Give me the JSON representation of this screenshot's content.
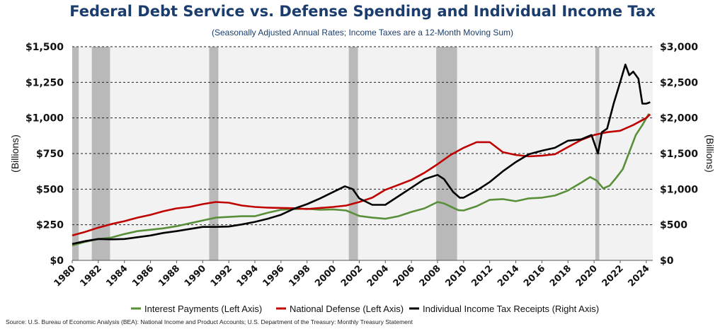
{
  "chart_data": {
    "type": "line",
    "title": "Federal Debt Service vs. Defense Spending and Individual Income Tax",
    "subtitle": "(Seasonally Adjusted Annual Rates; Income Taxes are a 12-Month Moving Sum)",
    "ylabel_left": "(Billions)",
    "ylabel_right": "(Billions)",
    "source": "Source: U.S. Bureau of Economic Analysis (BEA): National Income and Product Accounts; U.S. Department of the Treasury: Monthly Treasury Statement",
    "xlim": [
      1980,
      2024.5
    ],
    "ylim_left": [
      0,
      1500
    ],
    "ylim_right": [
      0,
      3000
    ],
    "x_ticks": [
      "1980",
      "1982",
      "1984",
      "1986",
      "1988",
      "1990",
      "1992",
      "1994",
      "1996",
      "1998",
      "2000",
      "2002",
      "2004",
      "2006",
      "2008",
      "2010",
      "2012",
      "2014",
      "2016",
      "2018",
      "2020",
      "2022",
      "2024"
    ],
    "y_ticks_left": [
      "$0",
      "$250",
      "$500",
      "$750",
      "$1,000",
      "$1,250",
      "$1,500"
    ],
    "y_ticks_right": [
      "$0",
      "$500",
      "$1,000",
      "$1,500",
      "$2,000",
      "$2,500",
      "$3,000"
    ],
    "grid": "horizontal dashed",
    "legend_position": "bottom",
    "recessions": [
      [
        1980.0,
        1980.5
      ],
      [
        1981.5,
        1982.9
      ],
      [
        1990.5,
        1991.2
      ],
      [
        2001.2,
        2001.9
      ],
      [
        2007.9,
        2009.5
      ],
      [
        2020.1,
        2020.4
      ]
    ],
    "series": [
      {
        "name": "Interest Payments (Left Axis)",
        "axis": "left",
        "color": "#5a8f3a",
        "points": [
          [
            1980,
            105
          ],
          [
            1981,
            130
          ],
          [
            1982,
            150
          ],
          [
            1983,
            160
          ],
          [
            1984,
            185
          ],
          [
            1985,
            205
          ],
          [
            1986,
            215
          ],
          [
            1987,
            225
          ],
          [
            1988,
            240
          ],
          [
            1989,
            260
          ],
          [
            1990,
            280
          ],
          [
            1991,
            300
          ],
          [
            1992,
            305
          ],
          [
            1993,
            310
          ],
          [
            1994,
            310
          ],
          [
            1995,
            335
          ],
          [
            1996,
            355
          ],
          [
            1997,
            360
          ],
          [
            1998,
            362
          ],
          [
            1999,
            355
          ],
          [
            2000,
            358
          ],
          [
            2001,
            350
          ],
          [
            2002,
            312
          ],
          [
            2003,
            300
          ],
          [
            2004,
            292
          ],
          [
            2005,
            310
          ],
          [
            2006,
            340
          ],
          [
            2007,
            365
          ],
          [
            2008,
            410
          ],
          [
            2008.5,
            400
          ],
          [
            2009,
            378
          ],
          [
            2009.6,
            352
          ],
          [
            2010,
            350
          ],
          [
            2011,
            380
          ],
          [
            2012,
            425
          ],
          [
            2013,
            430
          ],
          [
            2014,
            415
          ],
          [
            2015,
            435
          ],
          [
            2016,
            440
          ],
          [
            2017,
            455
          ],
          [
            2018,
            490
          ],
          [
            2019,
            545
          ],
          [
            2019.7,
            585
          ],
          [
            2020.2,
            560
          ],
          [
            2020.7,
            505
          ],
          [
            2021.2,
            525
          ],
          [
            2021.7,
            580
          ],
          [
            2022.2,
            640
          ],
          [
            2022.7,
            760
          ],
          [
            2023.2,
            880
          ],
          [
            2023.7,
            950
          ],
          [
            2024.2,
            1030
          ]
        ]
      },
      {
        "name": "National Defense (Left Axis)",
        "axis": "left",
        "color": "#c00000",
        "points": [
          [
            1980,
            175
          ],
          [
            1981,
            200
          ],
          [
            1982,
            230
          ],
          [
            1983,
            255
          ],
          [
            1984,
            275
          ],
          [
            1985,
            300
          ],
          [
            1986,
            320
          ],
          [
            1987,
            345
          ],
          [
            1988,
            365
          ],
          [
            1989,
            375
          ],
          [
            1990,
            395
          ],
          [
            1991,
            410
          ],
          [
            1992,
            405
          ],
          [
            1993,
            385
          ],
          [
            1994,
            375
          ],
          [
            1995,
            370
          ],
          [
            1996,
            368
          ],
          [
            1997,
            366
          ],
          [
            1998,
            360
          ],
          [
            1999,
            368
          ],
          [
            2000,
            375
          ],
          [
            2001,
            385
          ],
          [
            2002,
            410
          ],
          [
            2003,
            440
          ],
          [
            2004,
            495
          ],
          [
            2005,
            530
          ],
          [
            2006,
            565
          ],
          [
            2007,
            615
          ],
          [
            2008,
            675
          ],
          [
            2009,
            740
          ],
          [
            2010,
            790
          ],
          [
            2011,
            830
          ],
          [
            2012,
            830
          ],
          [
            2013,
            760
          ],
          [
            2014,
            740
          ],
          [
            2015,
            730
          ],
          [
            2016,
            735
          ],
          [
            2017,
            745
          ],
          [
            2018,
            795
          ],
          [
            2019,
            845
          ],
          [
            2020,
            880
          ],
          [
            2021,
            900
          ],
          [
            2022,
            910
          ],
          [
            2023,
            950
          ],
          [
            2024,
            1000
          ],
          [
            2024.3,
            1025
          ]
        ]
      },
      {
        "name": "Individual Income Tax Receipts (Right Axis)",
        "axis": "right",
        "color": "#000000",
        "points": [
          [
            1980,
            230
          ],
          [
            1981,
            270
          ],
          [
            1982,
            300
          ],
          [
            1983,
            295
          ],
          [
            1984,
            300
          ],
          [
            1985,
            325
          ],
          [
            1986,
            350
          ],
          [
            1987,
            385
          ],
          [
            1988,
            410
          ],
          [
            1989,
            440
          ],
          [
            1990,
            470
          ],
          [
            1991,
            470
          ],
          [
            1992,
            475
          ],
          [
            1993,
            505
          ],
          [
            1994,
            540
          ],
          [
            1995,
            585
          ],
          [
            1996,
            640
          ],
          [
            1997,
            725
          ],
          [
            1998,
            790
          ],
          [
            1999,
            870
          ],
          [
            2000,
            960
          ],
          [
            2000.9,
            1040
          ],
          [
            2001.5,
            1000
          ],
          [
            2002,
            870
          ],
          [
            2003,
            780
          ],
          [
            2004,
            780
          ],
          [
            2005,
            900
          ],
          [
            2006,
            1020
          ],
          [
            2007,
            1140
          ],
          [
            2008,
            1200
          ],
          [
            2008.5,
            1140
          ],
          [
            2009.2,
            960
          ],
          [
            2009.7,
            880
          ],
          [
            2010,
            880
          ],
          [
            2011,
            980
          ],
          [
            2012,
            1100
          ],
          [
            2013,
            1250
          ],
          [
            2014,
            1380
          ],
          [
            2015,
            1490
          ],
          [
            2016,
            1540
          ],
          [
            2017,
            1580
          ],
          [
            2018,
            1680
          ],
          [
            2019,
            1700
          ],
          [
            2019.8,
            1760
          ],
          [
            2020.3,
            1500
          ],
          [
            2020.6,
            1800
          ],
          [
            2021,
            1850
          ],
          [
            2021.5,
            2200
          ],
          [
            2022,
            2500
          ],
          [
            2022.4,
            2750
          ],
          [
            2022.7,
            2600
          ],
          [
            2023,
            2650
          ],
          [
            2023.4,
            2550
          ],
          [
            2023.7,
            2200
          ],
          [
            2024,
            2200
          ],
          [
            2024.3,
            2220
          ]
        ]
      }
    ]
  }
}
